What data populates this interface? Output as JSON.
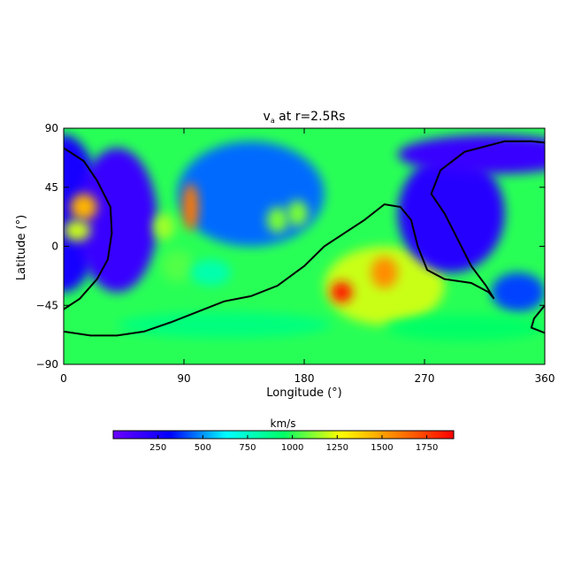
{
  "chart_data": {
    "type": "heatmap",
    "title": {
      "main": "v",
      "sub": "a",
      "rest": " at r=2.5Rs"
    },
    "xlabel": "Longitude (°)",
    "ylabel": "Latitude (°)",
    "xlim": [
      0,
      360
    ],
    "ylim": [
      -90,
      90
    ],
    "x_ticks": [
      "0",
      "90",
      "180",
      "270",
      "360"
    ],
    "y_ticks": [
      "90",
      "45",
      "0",
      "−45",
      "−90"
    ],
    "colorbar": {
      "label": "km/s",
      "range": [
        0,
        1900
      ],
      "ticks": [
        "250",
        "500",
        "750",
        "1000",
        "1250",
        "1500",
        "1750"
      ],
      "tick_values": [
        250,
        500,
        750,
        1000,
        1250,
        1500,
        1750
      ],
      "colors": [
        "#6b00ff",
        "#0000ff",
        "#00ffff",
        "#00ff66",
        "#ffff00",
        "#ff8000",
        "#ff0000"
      ]
    },
    "background_value": 1000,
    "features": [
      {
        "lon": 0,
        "lat": 25,
        "value": 250,
        "rx": 28,
        "ry": 60
      },
      {
        "lon": 40,
        "lat": 20,
        "value": 150,
        "rx": 30,
        "ry": 55
      },
      {
        "lon": 15,
        "lat": 30,
        "value": 1450,
        "rx": 10,
        "ry": 10
      },
      {
        "lon": 10,
        "lat": 12,
        "value": 1200,
        "rx": 10,
        "ry": 8
      },
      {
        "lon": 140,
        "lat": 40,
        "value": 450,
        "rx": 55,
        "ry": 40
      },
      {
        "lon": 95,
        "lat": 30,
        "value": 1600,
        "rx": 6,
        "ry": 18
      },
      {
        "lon": 75,
        "lat": 15,
        "value": 1150,
        "rx": 8,
        "ry": 10
      },
      {
        "lon": 85,
        "lat": -15,
        "value": 1050,
        "rx": 12,
        "ry": 12
      },
      {
        "lon": 160,
        "lat": 20,
        "value": 1100,
        "rx": 8,
        "ry": 10
      },
      {
        "lon": 175,
        "lat": 25,
        "value": 1100,
        "rx": 8,
        "ry": 10
      },
      {
        "lon": 110,
        "lat": -20,
        "value": 800,
        "rx": 15,
        "ry": 10
      },
      {
        "lon": 240,
        "lat": -30,
        "value": 1200,
        "rx": 45,
        "ry": 30
      },
      {
        "lon": 208,
        "lat": -35,
        "value": 1850,
        "rx": 8,
        "ry": 8
      },
      {
        "lon": 240,
        "lat": -20,
        "value": 1550,
        "rx": 10,
        "ry": 12
      },
      {
        "lon": 290,
        "lat": 25,
        "value": 200,
        "rx": 40,
        "ry": 45
      },
      {
        "lon": 320,
        "lat": 70,
        "value": 150,
        "rx": 70,
        "ry": 15
      },
      {
        "lon": 355,
        "lat": 20,
        "value": 1000,
        "rx": 12,
        "ry": 20
      },
      {
        "lon": 340,
        "lat": -35,
        "value": 400,
        "rx": 20,
        "ry": 15
      },
      {
        "lon": 120,
        "lat": -60,
        "value": 900,
        "rx": 80,
        "ry": 10
      },
      {
        "lon": 300,
        "lat": -62,
        "value": 950,
        "rx": 60,
        "ry": 10
      }
    ],
    "neutral_line": [
      [
        0,
        75
      ],
      [
        15,
        65
      ],
      [
        25,
        50
      ],
      [
        35,
        30
      ],
      [
        36,
        10
      ],
      [
        33,
        -10
      ],
      [
        25,
        -25
      ],
      [
        12,
        -40
      ],
      [
        0,
        -48
      ]
    ],
    "neutral_line_2": [
      [
        0,
        -65
      ],
      [
        20,
        -68
      ],
      [
        40,
        -68
      ],
      [
        60,
        -65
      ],
      [
        80,
        -58
      ],
      [
        100,
        -50
      ],
      [
        120,
        -42
      ],
      [
        140,
        -38
      ],
      [
        160,
        -30
      ],
      [
        180,
        -15
      ],
      [
        195,
        0
      ],
      [
        210,
        10
      ],
      [
        225,
        20
      ],
      [
        240,
        32
      ],
      [
        252,
        30
      ],
      [
        260,
        20
      ],
      [
        265,
        0
      ],
      [
        272,
        -18
      ],
      [
        285,
        -25
      ],
      [
        305,
        -28
      ],
      [
        318,
        -35
      ],
      [
        322,
        -40
      ],
      [
        316,
        -30
      ],
      [
        305,
        -15
      ],
      [
        295,
        5
      ],
      [
        285,
        25
      ],
      [
        275,
        40
      ],
      [
        282,
        58
      ],
      [
        300,
        72
      ],
      [
        330,
        80
      ],
      [
        350,
        80
      ],
      [
        360,
        79
      ]
    ],
    "neutral_line_3": [
      [
        360,
        -45
      ],
      [
        352,
        -55
      ],
      [
        350,
        -62
      ],
      [
        360,
        -66
      ]
    ]
  }
}
